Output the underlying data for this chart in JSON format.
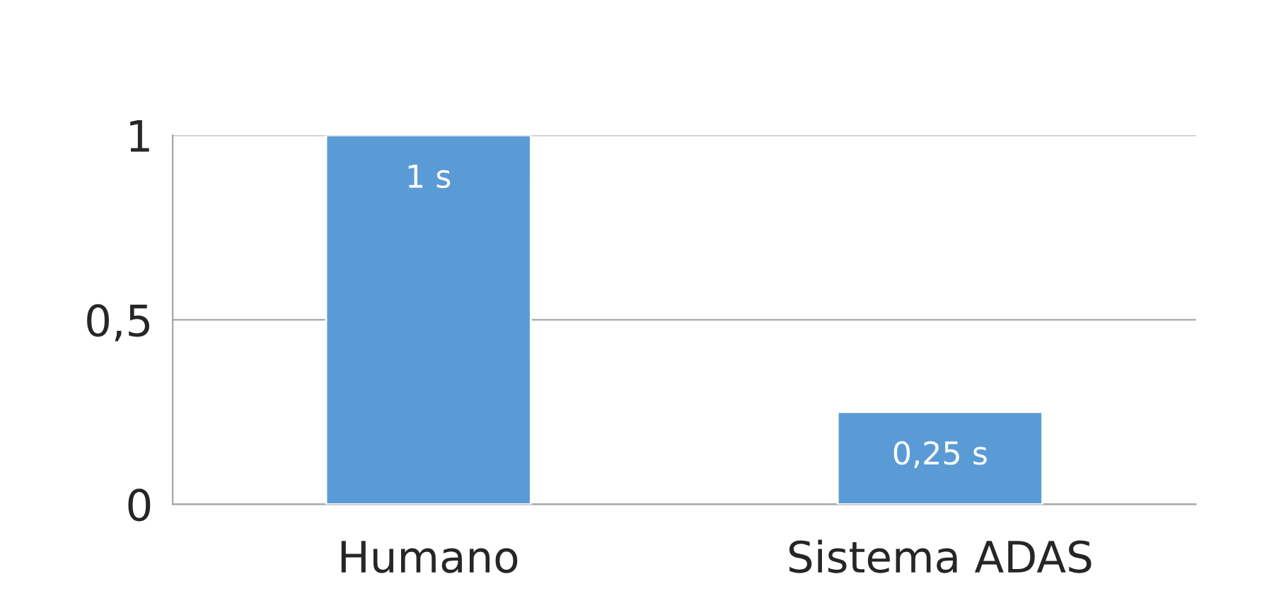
{
  "chart_data": {
    "type": "bar",
    "categories": [
      "Humano",
      "Sistema ADAS"
    ],
    "values": [
      1,
      0.25
    ],
    "value_labels": [
      "1 s",
      "0,25 s"
    ],
    "color": "#5b9bd5",
    "ylim": [
      0,
      1
    ],
    "yticks": [
      0,
      {
        "value": 0.5,
        "label": "0,5"
      },
      1
    ],
    "grid": "y"
  }
}
